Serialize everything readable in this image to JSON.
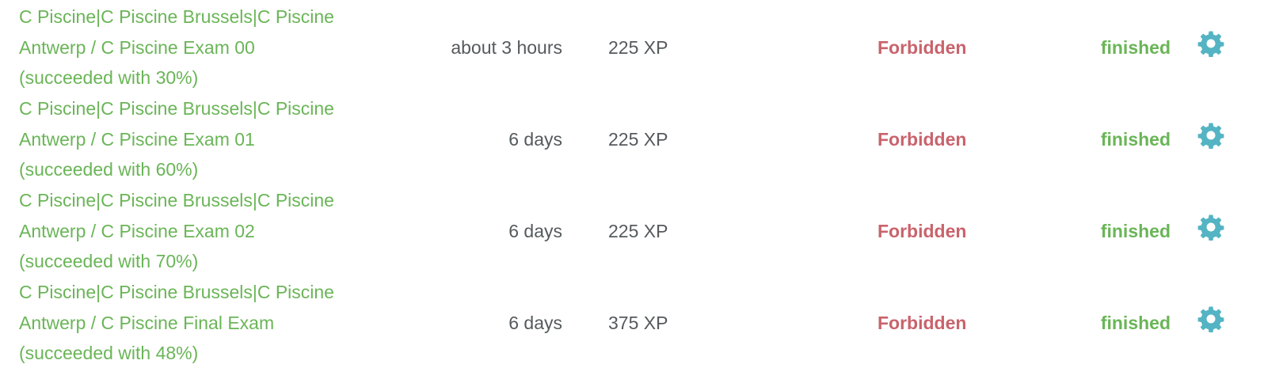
{
  "colors": {
    "project_link": "#6ab557",
    "forbidden": "#c9636c",
    "finished": "#6ab557",
    "gear": "#54b4c3",
    "text": "#555a5d"
  },
  "rows": [
    {
      "name_lines": [
        "C Piscine|C Piscine Brussels|C Piscine",
        "Antwerp / C Piscine Exam 00",
        "(succeeded with 30%)"
      ],
      "time": "about 3 hours",
      "xp": "225 XP",
      "status": "Forbidden",
      "state": "finished",
      "icon": "gear-icon"
    },
    {
      "name_lines": [
        "C Piscine|C Piscine Brussels|C Piscine",
        "Antwerp / C Piscine Exam 01",
        "(succeeded with 60%)"
      ],
      "time": "6 days",
      "xp": "225 XP",
      "status": "Forbidden",
      "state": "finished",
      "icon": "gear-icon"
    },
    {
      "name_lines": [
        "C Piscine|C Piscine Brussels|C Piscine",
        "Antwerp / C Piscine Exam 02",
        "(succeeded with 70%)"
      ],
      "time": "6 days",
      "xp": "225 XP",
      "status": "Forbidden",
      "state": "finished",
      "icon": "gear-icon"
    },
    {
      "name_lines": [
        "C Piscine|C Piscine Brussels|C Piscine",
        "Antwerp / C Piscine Final Exam",
        "(succeeded with 48%)"
      ],
      "time": "6 days",
      "xp": "375 XP",
      "status": "Forbidden",
      "state": "finished",
      "icon": "gear-icon"
    }
  ]
}
